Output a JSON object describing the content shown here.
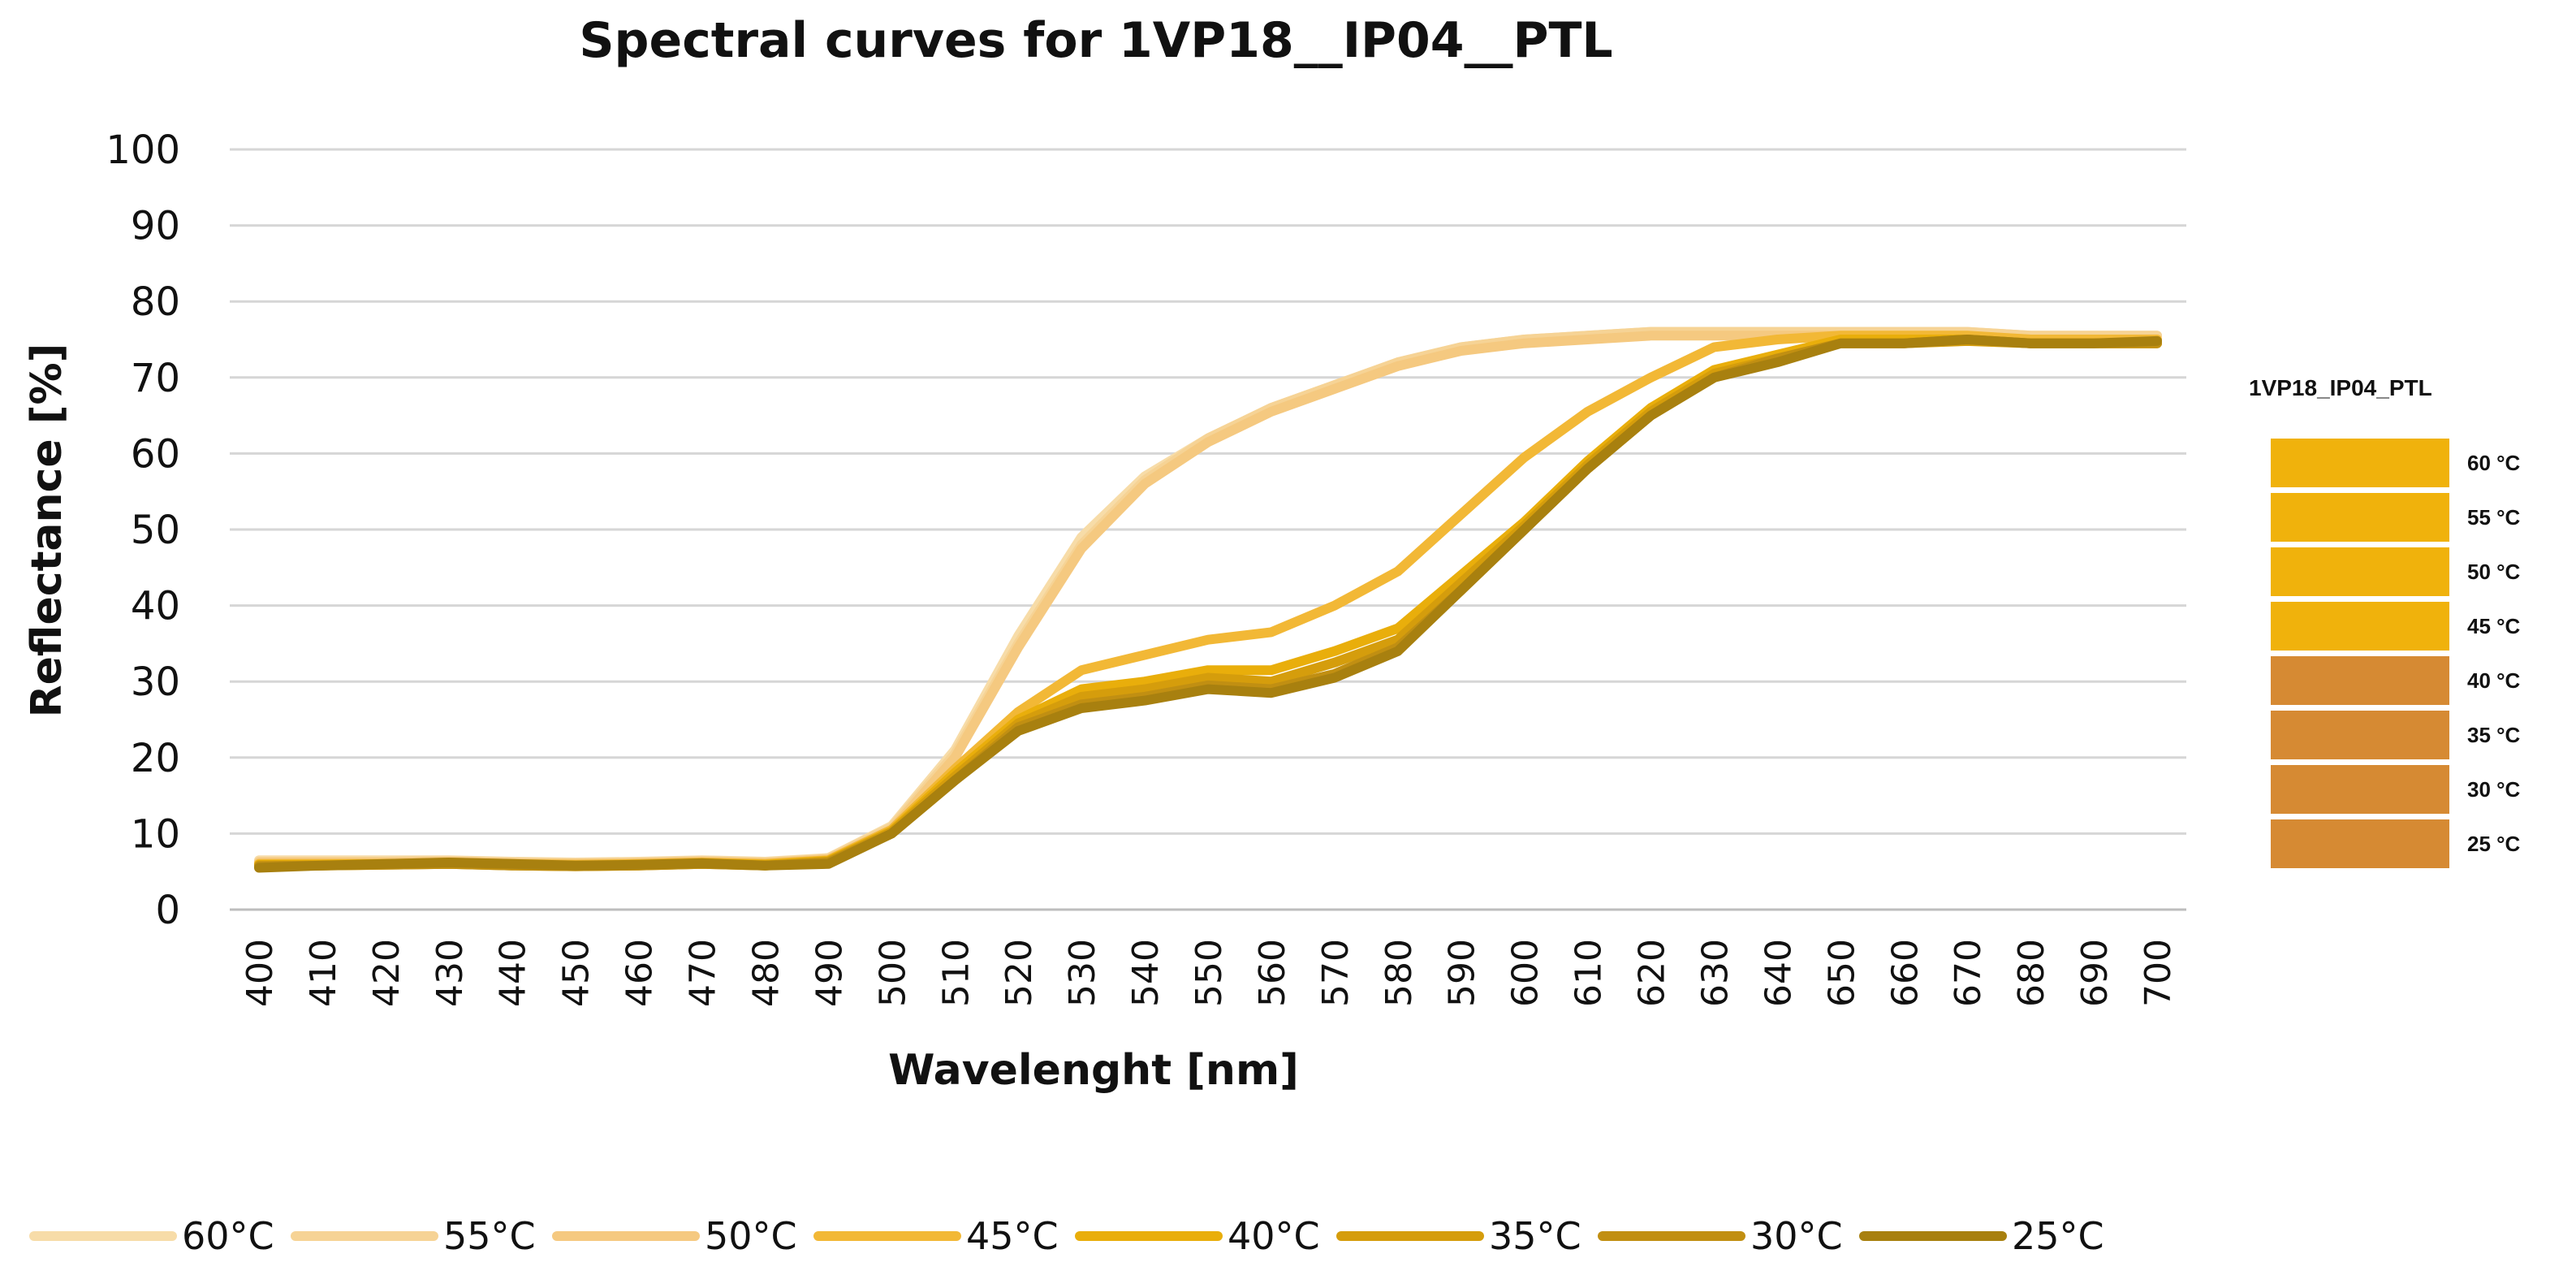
{
  "chart_data": {
    "type": "line",
    "title": "Spectral curves for 1VP18__IP04__PTL",
    "xlabel": "Wavelenght [nm]",
    "ylabel": "Reflectance [%]",
    "ylim": [
      0,
      100
    ],
    "yticks": [
      "0",
      "10",
      "20",
      "30",
      "40",
      "50",
      "60",
      "70",
      "80",
      "90",
      "100"
    ],
    "x": [
      400,
      410,
      420,
      430,
      440,
      450,
      460,
      470,
      480,
      490,
      500,
      510,
      520,
      530,
      540,
      550,
      560,
      570,
      580,
      590,
      600,
      610,
      620,
      630,
      640,
      650,
      660,
      670,
      680,
      690,
      700
    ],
    "grid": "horizontal",
    "legend_position": "bottom",
    "series": [
      {
        "name": "60°C",
        "color": "#f7dca8",
        "values": [
          6.5,
          6.5,
          6.5,
          6.5,
          6.3,
          6.2,
          6.3,
          6.5,
          6.3,
          6.8,
          11,
          21,
          36,
          49,
          57,
          62,
          66,
          69,
          72,
          74,
          75,
          75.5,
          76,
          76,
          76,
          76,
          76,
          76,
          75.5,
          75.5,
          75.5
        ]
      },
      {
        "name": "55°C",
        "color": "#f6d395",
        "values": [
          6.3,
          6.3,
          6.3,
          6.4,
          6.2,
          6.1,
          6.2,
          6.4,
          6.2,
          6.7,
          10.8,
          20.5,
          35,
          48,
          56.5,
          62,
          66,
          69,
          72,
          74,
          75,
          75.5,
          76,
          76,
          76,
          76,
          76,
          76,
          75.5,
          75.5,
          75.5
        ]
      },
      {
        "name": "50°C",
        "color": "#f5c980",
        "values": [
          6.2,
          6.2,
          6.2,
          6.3,
          6.1,
          6,
          6.1,
          6.3,
          6.1,
          6.6,
          10.5,
          20,
          34.5,
          47.5,
          56,
          61.5,
          65.5,
          68.5,
          71.5,
          73.5,
          74.5,
          75,
          75.5,
          75.5,
          75.5,
          75.5,
          75.5,
          75.5,
          75,
          75,
          75
        ]
      },
      {
        "name": "45°C",
        "color": "#f2b836",
        "values": [
          6,
          6,
          6,
          6.2,
          6,
          5.9,
          6,
          6.2,
          6,
          6.5,
          10.5,
          18.5,
          26,
          31.5,
          33.5,
          35.5,
          36.5,
          40,
          44.5,
          52,
          59.5,
          65.5,
          70,
          74,
          75,
          75.5,
          75.5,
          75.5,
          75,
          75,
          75
        ]
      },
      {
        "name": "40°C",
        "color": "#e9ae0b",
        "values": [
          5.9,
          5.9,
          6,
          6.1,
          5.9,
          5.8,
          5.9,
          6.1,
          5.9,
          6.4,
          10.3,
          18,
          25,
          29,
          30,
          31.5,
          31.5,
          34,
          37,
          44,
          51,
          59,
          66,
          71,
          73,
          75,
          75,
          75,
          74.5,
          74.5,
          74.5
        ]
      },
      {
        "name": "35°C",
        "color": "#d59d0c",
        "values": [
          5.8,
          5.8,
          5.9,
          6,
          5.8,
          5.7,
          5.8,
          6,
          5.8,
          6.3,
          10.2,
          17.5,
          24.5,
          28,
          29,
          30.5,
          30,
          32.5,
          35.5,
          43,
          50.5,
          58.5,
          65.5,
          70.5,
          72.5,
          74.5,
          74.5,
          74.8,
          74.5,
          74.5,
          74.5
        ]
      },
      {
        "name": "30°C",
        "color": "#c18f12",
        "values": [
          5.7,
          5.8,
          5.9,
          6,
          5.8,
          5.7,
          5.8,
          6,
          5.8,
          6.2,
          10,
          17,
          24,
          27,
          28,
          29.5,
          29,
          31,
          34.5,
          42,
          50,
          58,
          65,
          70,
          72.5,
          74.5,
          74.5,
          75,
          74.5,
          74.5,
          74.5
        ]
      },
      {
        "name": "25°C",
        "color": "#a8800f",
        "values": [
          5.5,
          5.8,
          6,
          6.2,
          6,
          5.8,
          5.9,
          6.1,
          5.8,
          6,
          10,
          17,
          23.5,
          26.5,
          27.5,
          29,
          28.5,
          30.5,
          34,
          42,
          50,
          58,
          65,
          70,
          72,
          74.5,
          74.5,
          75,
          74.5,
          74.5,
          74.8
        ]
      }
    ],
    "side_panel": {
      "title": "1VP18_IP04_PTL",
      "items": [
        {
          "label": "60 °C",
          "color": "#f0b20c"
        },
        {
          "label": "55 °C",
          "color": "#f0b20c"
        },
        {
          "label": "50 °C",
          "color": "#f0b20c"
        },
        {
          "label": "45 °C",
          "color": "#f0b20c"
        },
        {
          "label": "40 °C",
          "color": "#d68a33"
        },
        {
          "label": "35 °C",
          "color": "#d68a33"
        },
        {
          "label": "30 °C",
          "color": "#d68a33"
        },
        {
          "label": "25 °C",
          "color": "#d68a33"
        }
      ]
    }
  }
}
